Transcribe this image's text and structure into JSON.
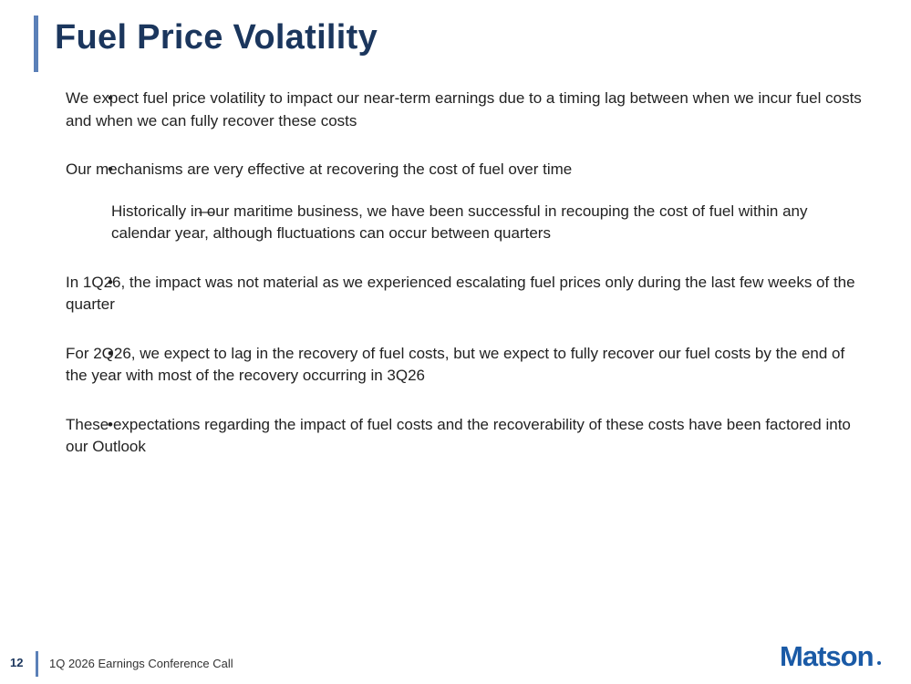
{
  "header": {
    "title": "Fuel Price Volatility"
  },
  "bullets": [
    {
      "text": "We expect fuel price volatility to impact our near-term earnings due to a timing lag between when we incur fuel costs and when we can fully recover these costs"
    },
    {
      "text": "Our mechanisms are very effective at recovering the cost of fuel over time",
      "sub": [
        "Historically in our maritime business, we have been successful in recouping the cost of fuel within any calendar year, although fluctuations can occur between quarters"
      ]
    },
    {
      "text": "In 1Q26, the impact was not material as we experienced escalating fuel prices only during the last few weeks of the quarter"
    },
    {
      "text": "For 2Q26, we expect to lag in the recovery of fuel costs, but we expect to fully recover our fuel costs by the end of the year with most of the recovery occurring in 3Q26"
    },
    {
      "text": "These expectations regarding the impact of fuel costs and the recoverability of these costs have been factored into our Outlook"
    }
  ],
  "footer": {
    "page": "12",
    "text": "1Q 2026 Earnings Conference Call",
    "logo": "Matson"
  }
}
